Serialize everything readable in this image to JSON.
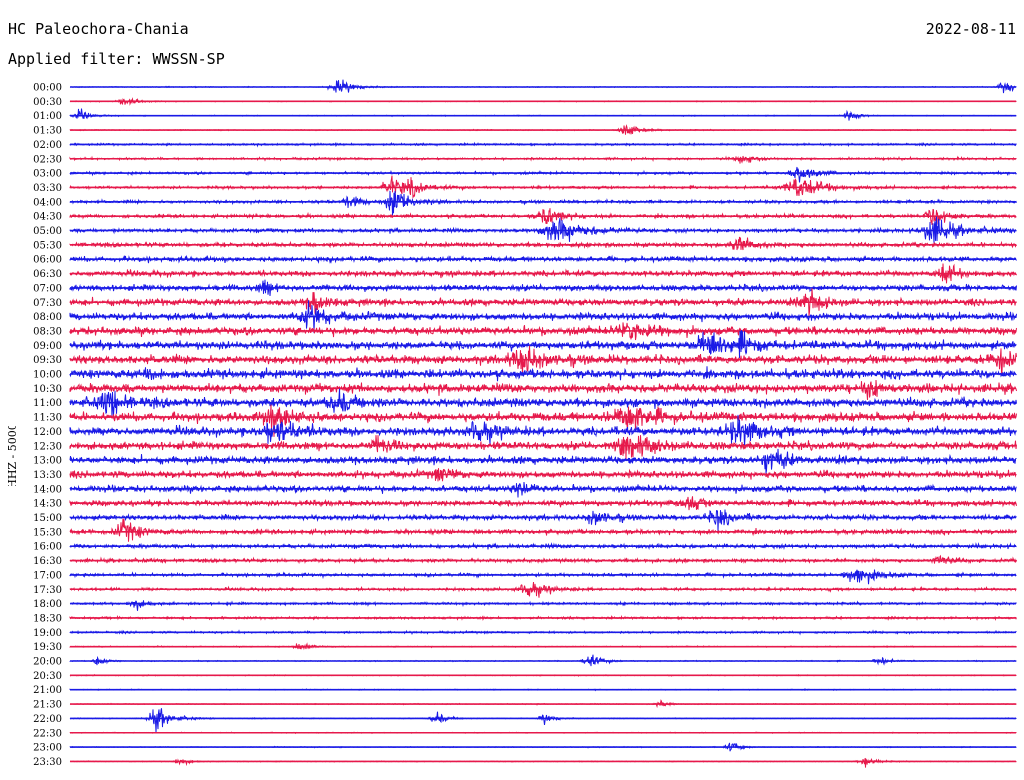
{
  "header": {
    "station": "HC Paleochora-Chania",
    "date": "2022-08-11",
    "filter": "Applied filter: WWSSN-SP"
  },
  "channel_label": "HHZ - 5000",
  "colors": {
    "odd": "#1a1ae6",
    "even": "#e6194b",
    "text": "#000000"
  },
  "chart_data": {
    "type": "line",
    "title": "HC Paleochora-Chania",
    "subtitle": "Applied filter: WWSSN-SP",
    "ylabel": "HHZ - 5000",
    "xlabel": "",
    "row_labels": [
      "00:00",
      "00:30",
      "01:00",
      "01:30",
      "02:00",
      "02:30",
      "03:00",
      "03:30",
      "04:00",
      "04:30",
      "05:00",
      "05:30",
      "06:00",
      "06:30",
      "07:00",
      "07:30",
      "08:00",
      "08:30",
      "09:00",
      "09:30",
      "10:00",
      "10:30",
      "11:00",
      "11:30",
      "12:00",
      "12:30",
      "13:00",
      "13:30",
      "14:00",
      "14:30",
      "15:00",
      "15:30",
      "16:00",
      "16:30",
      "17:00",
      "17:30",
      "18:00",
      "18:30",
      "19:00",
      "19:30",
      "20:00",
      "20:30",
      "21:00",
      "21:30",
      "22:00",
      "22:30",
      "23:00",
      "23:30"
    ],
    "row_colors": [
      "blue",
      "red"
    ],
    "grid": false
  }
}
